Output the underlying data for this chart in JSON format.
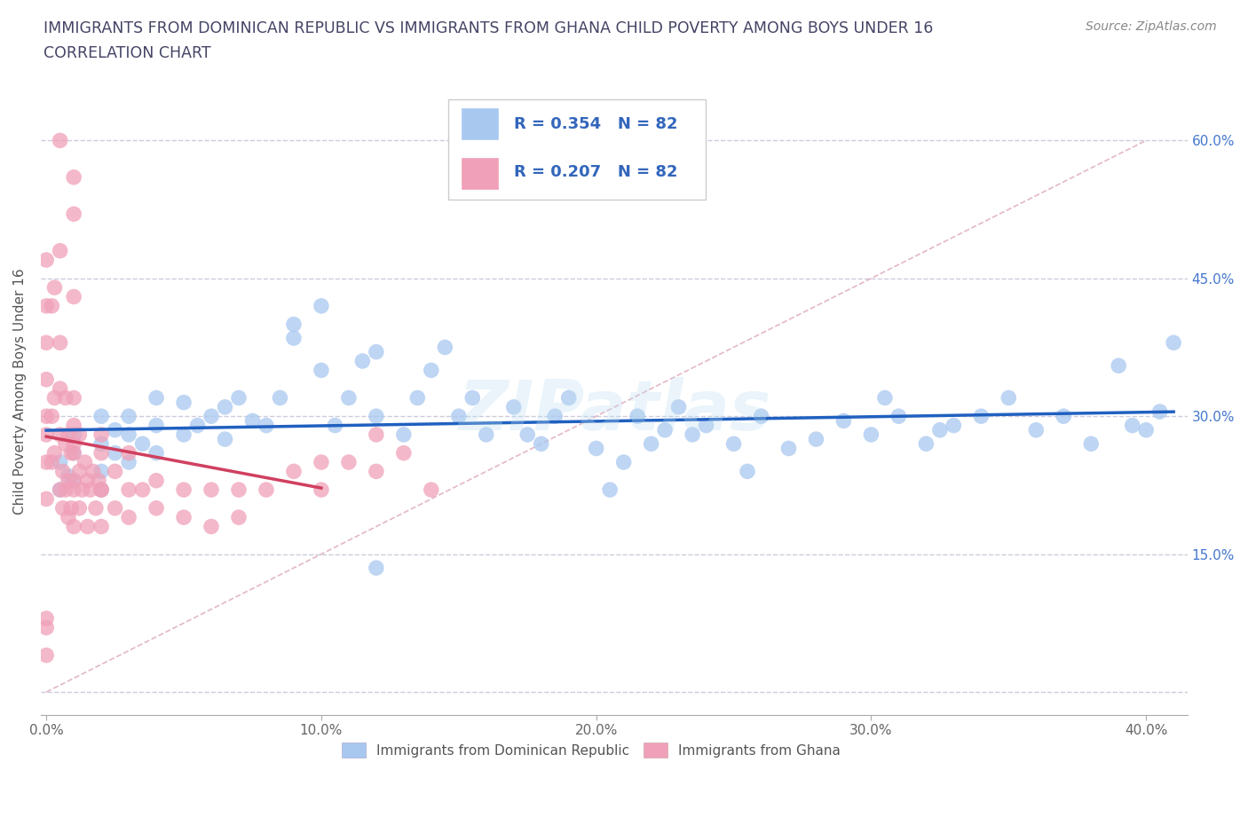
{
  "title_line1": "IMMIGRANTS FROM DOMINICAN REPUBLIC VS IMMIGRANTS FROM GHANA CHILD POVERTY AMONG BOYS UNDER 16",
  "title_line2": "CORRELATION CHART",
  "source_text": "Source: ZipAtlas.com",
  "ylabel": "Child Poverty Among Boys Under 16",
  "legend_label1": "Immigrants from Dominican Republic",
  "legend_label2": "Immigrants from Ghana",
  "R1": 0.354,
  "N1": 82,
  "R2": 0.207,
  "N2": 82,
  "color_blue": "#A8C8F0",
  "color_pink": "#F0A0B8",
  "color_blue_line": "#2060C0",
  "color_pink_line": "#D04060",
  "color_diag": "#E0B0C0",
  "watermark": "ZIPatlas",
  "xlim_min": -0.002,
  "xlim_max": 0.415,
  "ylim_min": -0.025,
  "ylim_max": 0.68,
  "blue_x": [
    0.005,
    0.005,
    0.008,
    0.01,
    0.01,
    0.01,
    0.02,
    0.02,
    0.02,
    0.02,
    0.025,
    0.025,
    0.03,
    0.03,
    0.03,
    0.035,
    0.04,
    0.04,
    0.04,
    0.05,
    0.05,
    0.055,
    0.06,
    0.065,
    0.065,
    0.07,
    0.075,
    0.08,
    0.085,
    0.09,
    0.09,
    0.1,
    0.1,
    0.105,
    0.11,
    0.115,
    0.12,
    0.12,
    0.13,
    0.135,
    0.14,
    0.145,
    0.15,
    0.155,
    0.16,
    0.17,
    0.175,
    0.18,
    0.185,
    0.19,
    0.2,
    0.205,
    0.21,
    0.215,
    0.22,
    0.225,
    0.23,
    0.235,
    0.24,
    0.25,
    0.255,
    0.26,
    0.27,
    0.28,
    0.29,
    0.3,
    0.305,
    0.31,
    0.32,
    0.325,
    0.33,
    0.34,
    0.35,
    0.36,
    0.37,
    0.38,
    0.39,
    0.395,
    0.4,
    0.405,
    0.41,
    0.12
  ],
  "blue_y": [
    0.22,
    0.25,
    0.235,
    0.23,
    0.26,
    0.28,
    0.24,
    0.27,
    0.3,
    0.22,
    0.26,
    0.285,
    0.25,
    0.3,
    0.28,
    0.27,
    0.29,
    0.32,
    0.26,
    0.28,
    0.315,
    0.29,
    0.3,
    0.275,
    0.31,
    0.32,
    0.295,
    0.29,
    0.32,
    0.4,
    0.385,
    0.35,
    0.42,
    0.29,
    0.32,
    0.36,
    0.37,
    0.3,
    0.28,
    0.32,
    0.35,
    0.375,
    0.3,
    0.32,
    0.28,
    0.31,
    0.28,
    0.27,
    0.3,
    0.32,
    0.265,
    0.22,
    0.25,
    0.3,
    0.27,
    0.285,
    0.31,
    0.28,
    0.29,
    0.27,
    0.24,
    0.3,
    0.265,
    0.275,
    0.295,
    0.28,
    0.32,
    0.3,
    0.27,
    0.285,
    0.29,
    0.3,
    0.32,
    0.285,
    0.3,
    0.27,
    0.355,
    0.29,
    0.285,
    0.305,
    0.38,
    0.135
  ],
  "pink_x": [
    0.0,
    0.0,
    0.0,
    0.0,
    0.0,
    0.0,
    0.0,
    0.0,
    0.002,
    0.002,
    0.003,
    0.003,
    0.005,
    0.005,
    0.005,
    0.005,
    0.006,
    0.006,
    0.007,
    0.007,
    0.007,
    0.008,
    0.008,
    0.008,
    0.009,
    0.009,
    0.01,
    0.01,
    0.01,
    0.01,
    0.01,
    0.01,
    0.01,
    0.012,
    0.012,
    0.012,
    0.013,
    0.014,
    0.015,
    0.015,
    0.016,
    0.017,
    0.018,
    0.019,
    0.02,
    0.02,
    0.02,
    0.02,
    0.02,
    0.025,
    0.025,
    0.03,
    0.03,
    0.03,
    0.035,
    0.04,
    0.04,
    0.05,
    0.05,
    0.06,
    0.06,
    0.07,
    0.07,
    0.08,
    0.09,
    0.1,
    0.1,
    0.11,
    0.12,
    0.13,
    0.14,
    0.005,
    0.01,
    0.01,
    0.01,
    0.005,
    0.003,
    0.002,
    0.0,
    0.0,
    0.0,
    0.12
  ],
  "pink_y": [
    0.21,
    0.25,
    0.28,
    0.3,
    0.34,
    0.38,
    0.42,
    0.47,
    0.25,
    0.3,
    0.26,
    0.32,
    0.22,
    0.28,
    0.33,
    0.38,
    0.2,
    0.24,
    0.22,
    0.27,
    0.32,
    0.19,
    0.23,
    0.28,
    0.2,
    0.26,
    0.22,
    0.26,
    0.29,
    0.32,
    0.18,
    0.23,
    0.27,
    0.2,
    0.24,
    0.28,
    0.22,
    0.25,
    0.18,
    0.23,
    0.22,
    0.24,
    0.2,
    0.23,
    0.22,
    0.26,
    0.18,
    0.28,
    0.22,
    0.2,
    0.24,
    0.22,
    0.26,
    0.19,
    0.22,
    0.2,
    0.23,
    0.22,
    0.19,
    0.22,
    0.18,
    0.22,
    0.19,
    0.22,
    0.24,
    0.22,
    0.25,
    0.25,
    0.24,
    0.26,
    0.22,
    0.6,
    0.56,
    0.52,
    0.43,
    0.48,
    0.44,
    0.42,
    0.04,
    0.07,
    0.08,
    0.28
  ]
}
